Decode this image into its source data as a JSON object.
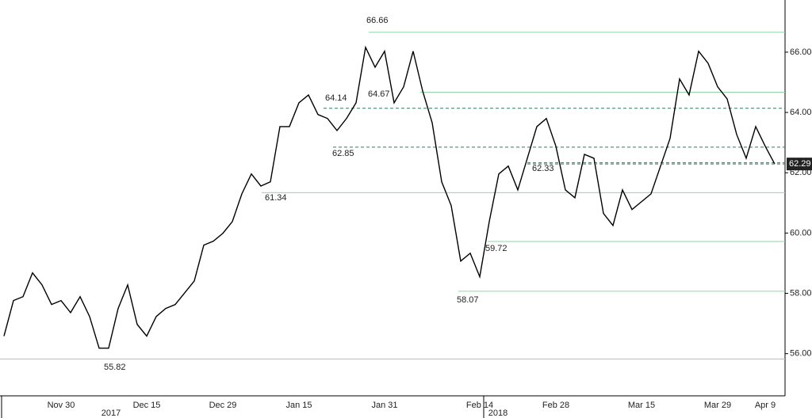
{
  "chart_data": {
    "type": "line",
    "categories": [
      null,
      null,
      null,
      null,
      null,
      null,
      "Nov 30",
      null,
      null,
      null,
      null,
      null,
      null,
      null,
      null,
      "Dec 15",
      null,
      null,
      null,
      null,
      null,
      null,
      null,
      "Dec 29",
      null,
      null,
      null,
      null,
      null,
      null,
      null,
      "Jan 15",
      null,
      null,
      null,
      null,
      null,
      null,
      null,
      null,
      "Jan 31",
      null,
      null,
      null,
      null,
      null,
      null,
      null,
      null,
      null,
      "Feb 14",
      null,
      null,
      null,
      null,
      null,
      null,
      null,
      "Feb 28",
      null,
      null,
      null,
      null,
      null,
      null,
      null,
      null,
      "Mar 15",
      null,
      null,
      null,
      null,
      null,
      null,
      null,
      "Mar 29",
      null,
      null,
      null,
      null,
      "Apr 9",
      null
    ],
    "year_labels": [
      "2017",
      "2018"
    ],
    "series": [
      {
        "color": "#000000",
        "values": [
          56.58,
          57.76,
          57.89,
          58.68,
          58.28,
          57.63,
          57.76,
          57.36,
          57.89,
          57.23,
          56.18,
          56.18,
          57.5,
          58.28,
          56.97,
          56.58,
          57.23,
          57.5,
          57.63,
          58.02,
          58.41,
          59.6,
          59.73,
          59.99,
          60.38,
          61.3,
          61.96,
          61.56,
          61.7,
          63.53,
          63.53,
          64.32,
          64.58,
          63.93,
          63.8,
          63.4,
          63.8,
          64.32,
          66.16,
          65.5,
          66.03,
          64.32,
          64.85,
          66.03,
          64.71,
          63.66,
          61.7,
          60.91,
          59.07,
          59.33,
          58.55,
          60.38,
          61.96,
          62.22,
          61.43,
          62.48,
          63.53,
          63.8,
          62.88,
          61.43,
          61.17,
          62.61,
          62.48,
          60.65,
          60.25,
          61.43,
          60.78,
          61.04,
          61.3,
          62.22,
          63.14,
          65.11,
          64.58,
          66.03,
          65.63,
          64.85,
          64.45,
          63.27,
          62.48,
          63.53,
          62.88,
          62.29
        ]
      }
    ],
    "levels": [
      {
        "value": 66.66,
        "style": "solid"
      },
      {
        "value": 64.67,
        "style": "solid"
      },
      {
        "value": 64.14,
        "style": "dashed"
      },
      {
        "value": 62.85,
        "style": "dashed"
      },
      {
        "value": 62.33,
        "style": "dashed"
      },
      {
        "value": 61.34,
        "style": "solid"
      },
      {
        "value": 59.72,
        "style": "solid"
      },
      {
        "value": 58.07,
        "style": "solid"
      },
      {
        "value": 55.82,
        "style": "solid"
      }
    ],
    "last": 62.29,
    "ylim": [
      54.6,
      67.73
    ],
    "yticks": [
      {
        "value": 56,
        "label": "56.00"
      },
      {
        "value": 58,
        "label": "58.00"
      },
      {
        "value": 60,
        "label": "60.00"
      },
      {
        "value": 62,
        "label": "62.00"
      },
      {
        "value": 64,
        "label": "64.00"
      },
      {
        "value": 66,
        "label": "66.00"
      }
    ]
  }
}
